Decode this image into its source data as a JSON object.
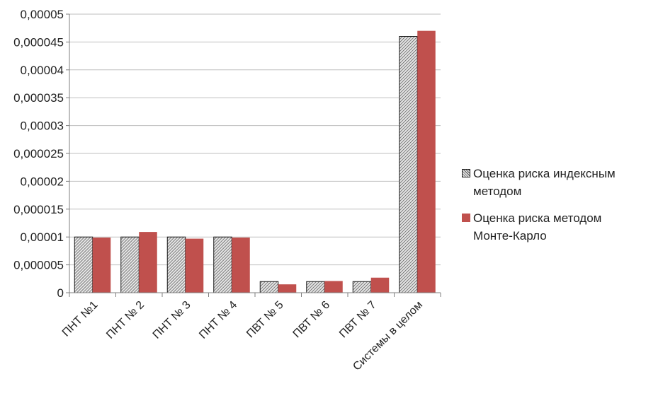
{
  "chart_data": {
    "type": "bar",
    "title": "",
    "xlabel": "",
    "ylabel": "",
    "categories": [
      "ПНТ №1",
      "ПНТ № 2",
      "ПНТ № 3",
      "ПНТ № 4",
      "ПВТ № 5",
      "ПВТ № 6",
      "ПВТ № 7",
      "Системы в целом"
    ],
    "series": [
      {
        "name": "Оценка риска индексным методом",
        "pattern": "hatched",
        "color": "#d9d9d9",
        "values": [
          1e-05,
          1e-05,
          1e-05,
          1e-05,
          2e-06,
          2e-06,
          2e-06,
          4.6e-05
        ]
      },
      {
        "name": "Оценка риска методом Монте-Карло",
        "pattern": "solid",
        "color": "#c0504d",
        "values": [
          9.9e-06,
          1.09e-05,
          9.7e-06,
          9.9e-06,
          1.5e-06,
          2.1e-06,
          2.7e-06,
          4.7e-05
        ]
      }
    ],
    "y_ticks": [
      "0",
      "0,000005",
      "0,00001",
      "0,000015",
      "0,00002",
      "0,000025",
      "0,00003",
      "0,000035",
      "0,00004",
      "0,000045",
      "0,00005"
    ],
    "ylim": [
      0,
      5e-05
    ],
    "grid": true,
    "legend_position": "right"
  }
}
